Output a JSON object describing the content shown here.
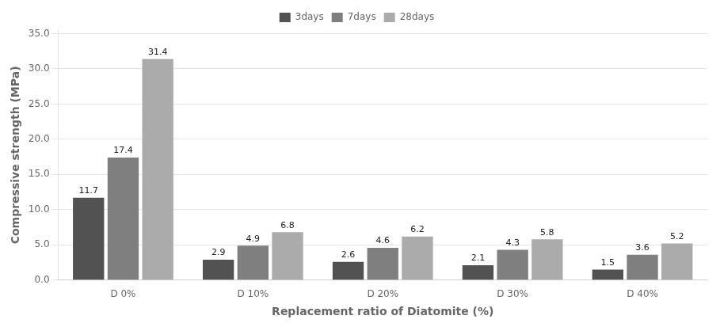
{
  "chart_data": {
    "type": "bar",
    "categories": [
      "D 0%",
      "D 10%",
      "D 20%",
      "D 30%",
      "D 40%"
    ],
    "series": [
      {
        "name": "3days",
        "color": "#525252",
        "values": [
          11.7,
          2.9,
          2.6,
          2.1,
          1.5
        ]
      },
      {
        "name": "7days",
        "color": "#7f7f7f",
        "values": [
          17.4,
          4.9,
          4.6,
          4.3,
          3.6
        ]
      },
      {
        "name": "28days",
        "color": "#ababab",
        "values": [
          31.4,
          6.8,
          6.2,
          5.8,
          5.2
        ]
      }
    ],
    "xlabel": "Replacement ratio of Diatomite (%)",
    "ylabel": "Compressive strength (MPa)",
    "ylim": [
      0,
      35.5
    ],
    "yticks": [
      {
        "value": 0,
        "label": "0.0"
      },
      {
        "value": 5,
        "label": "5.0"
      },
      {
        "value": 10,
        "label": "10.0"
      },
      {
        "value": 15,
        "label": "15.0"
      },
      {
        "value": 20,
        "label": "20.0"
      },
      {
        "value": 25,
        "label": "25.0"
      },
      {
        "value": 30,
        "label": "30.0"
      },
      {
        "value": 35,
        "label": "35.0"
      }
    ],
    "grid": true,
    "legend": "top",
    "data_labels": true
  }
}
